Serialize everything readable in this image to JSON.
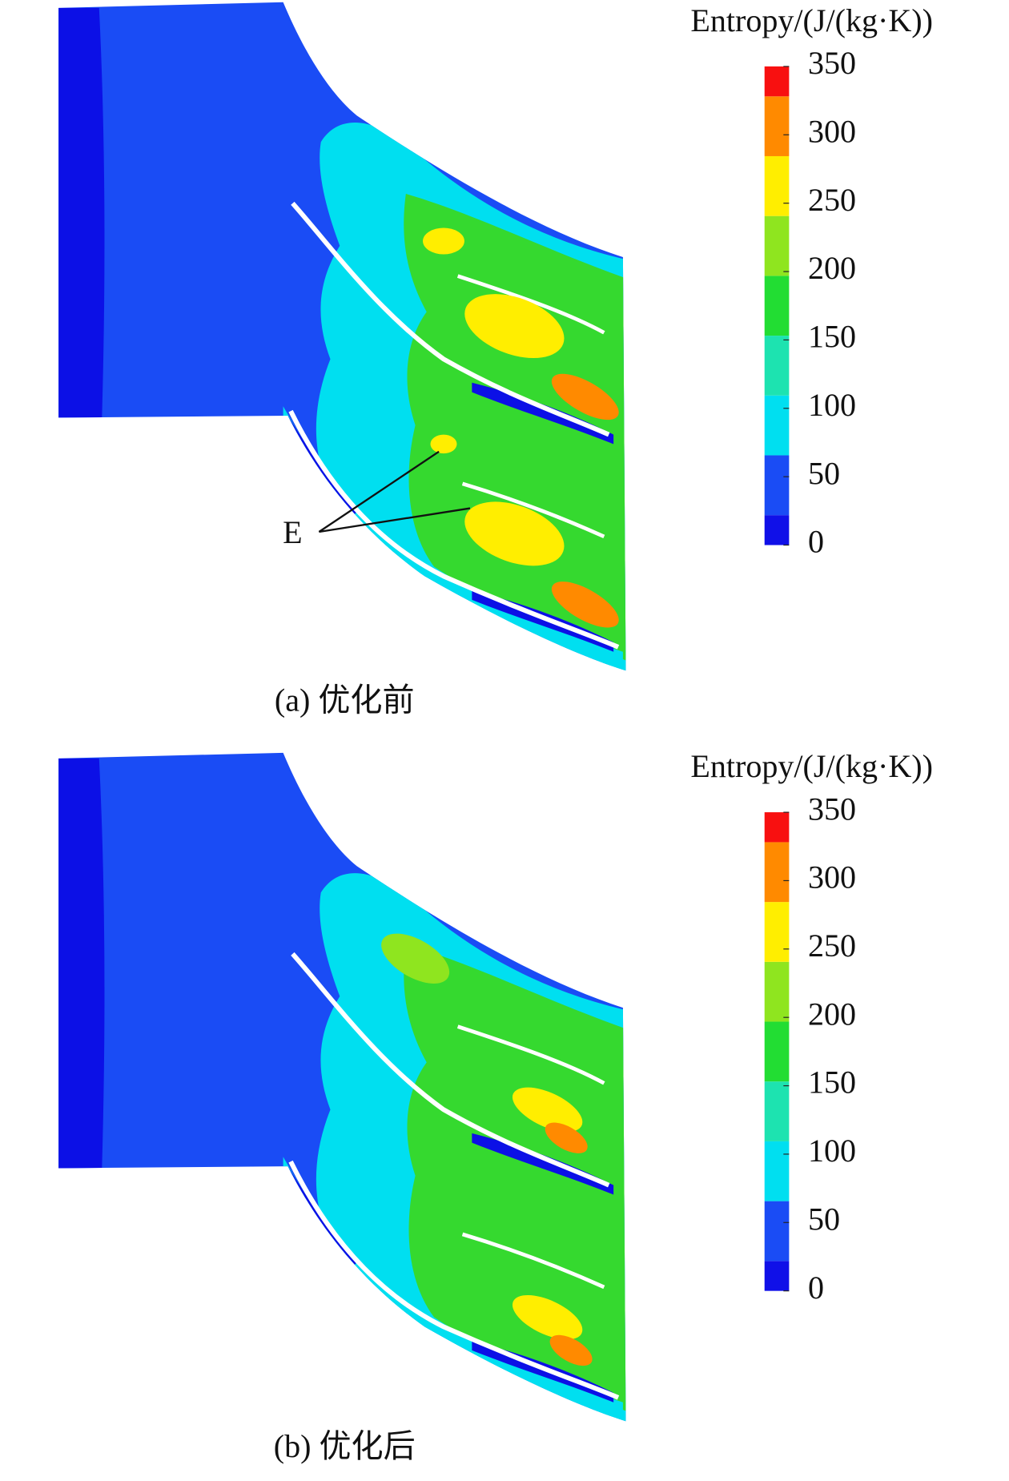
{
  "panels": [
    {
      "label": "(a) 优化前",
      "annotation": "E",
      "colorbar": {
        "title": "Entropy/(J/(kg·K))",
        "ticks": [
          0,
          50,
          100,
          150,
          200,
          250,
          300,
          350
        ]
      }
    },
    {
      "label": "(b) 优化后",
      "colorbar": {
        "title": "Entropy/(J/(kg·K))",
        "ticks": [
          0,
          50,
          100,
          150,
          200,
          250,
          300,
          350
        ]
      }
    }
  ]
}
